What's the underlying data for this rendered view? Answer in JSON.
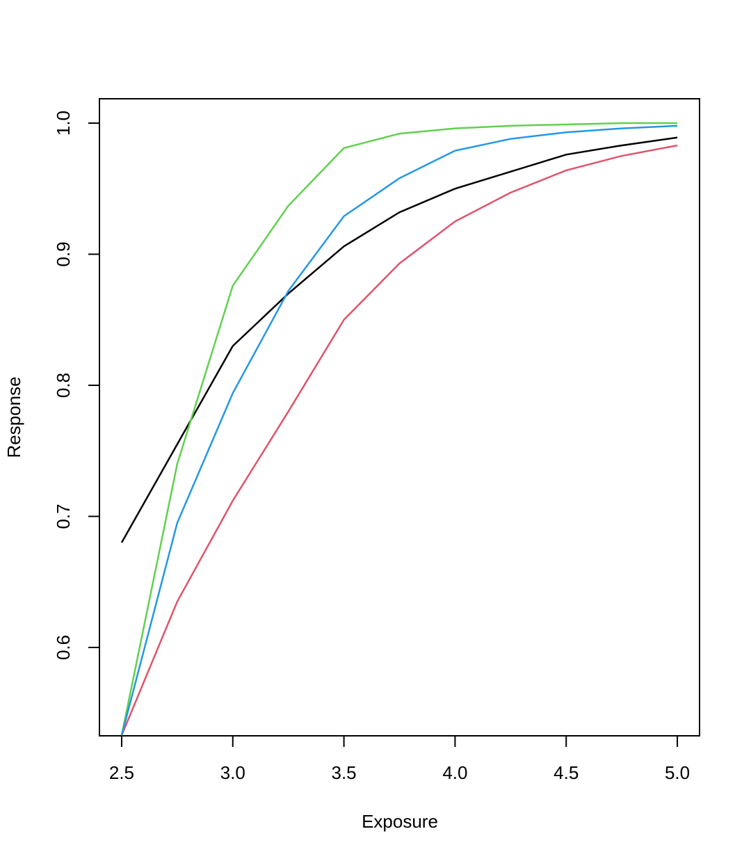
{
  "chart_data": {
    "type": "line",
    "x_label": "Exposure",
    "y_label": "Response",
    "x": [
      2.5,
      2.75,
      3.0,
      3.25,
      3.5,
      3.75,
      4.0,
      4.25,
      4.5,
      4.75,
      5.0
    ],
    "series": [
      {
        "color": "#000000",
        "values": [
          0.68,
          0.755,
          0.83,
          0.87,
          0.906,
          0.932,
          0.95,
          0.963,
          0.976,
          0.983,
          0.989
        ]
      },
      {
        "color": "#DF536B",
        "values": [
          0.533,
          0.635,
          0.712,
          0.78,
          0.85,
          0.893,
          0.925,
          0.947,
          0.964,
          0.975,
          0.983
        ]
      },
      {
        "color": "#61D04F",
        "values": [
          0.533,
          0.74,
          0.876,
          0.937,
          0.981,
          0.992,
          0.996,
          0.998,
          0.999,
          1.0,
          1.0
        ]
      },
      {
        "color": "#2297E6",
        "values": [
          0.533,
          0.695,
          0.794,
          0.872,
          0.929,
          0.958,
          0.979,
          0.988,
          0.993,
          0.996,
          0.998
        ]
      }
    ],
    "xlim": [
      2.4,
      5.1
    ],
    "ylim": [
      0.5326,
      1.0186
    ],
    "xticks": [
      2.5,
      {
        "value": 3,
        "label": "3.0"
      },
      3.5,
      {
        "value": 4,
        "label": "4.0"
      },
      4.5,
      {
        "value": 5,
        "label": "5.0"
      }
    ],
    "yticks": [
      0.6,
      0.7,
      0.8,
      0.9,
      {
        "value": 1,
        "label": "1.0"
      }
    ]
  }
}
